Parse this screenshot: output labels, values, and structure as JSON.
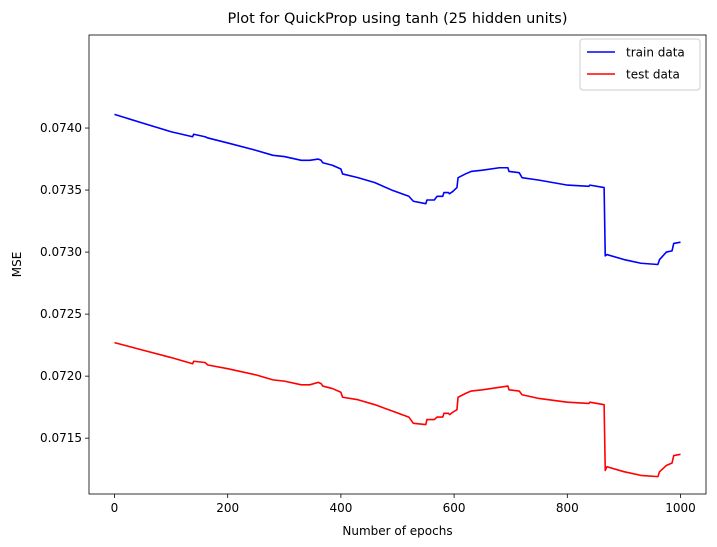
{
  "chart_data": {
    "type": "line",
    "title": "Plot for QuickProp using tanh (25 hidden units)",
    "xlabel": "Number of epochs",
    "ylabel": "MSE",
    "xlim": [
      -45,
      1045
    ],
    "ylim": [
      0.07105,
      0.07475
    ],
    "xticks": [
      0,
      200,
      400,
      600,
      800,
      1000
    ],
    "yticks": [
      0.0715,
      0.072,
      0.0725,
      0.073,
      0.0735,
      0.074
    ],
    "ytick_labels": [
      "0.0715",
      "0.0720",
      "0.0725",
      "0.0730",
      "0.0735",
      "0.0740"
    ],
    "grid": false,
    "legend_position": "top-right",
    "series": [
      {
        "name": "train data",
        "color": "#0000ff",
        "points": [
          [
            0,
            0.07411
          ],
          [
            50,
            0.07404
          ],
          [
            100,
            0.07397
          ],
          [
            138,
            0.07393
          ],
          [
            140,
            0.07395
          ],
          [
            160,
            0.07393
          ],
          [
            165,
            0.07392
          ],
          [
            200,
            0.07388
          ],
          [
            250,
            0.07382
          ],
          [
            280,
            0.07378
          ],
          [
            300,
            0.07377
          ],
          [
            330,
            0.07374
          ],
          [
            345,
            0.07374
          ],
          [
            360,
            0.07375
          ],
          [
            365,
            0.07374
          ],
          [
            368,
            0.07372
          ],
          [
            385,
            0.0737
          ],
          [
            400,
            0.07367
          ],
          [
            403,
            0.07363
          ],
          [
            430,
            0.0736
          ],
          [
            460,
            0.07356
          ],
          [
            490,
            0.0735
          ],
          [
            520,
            0.07345
          ],
          [
            528,
            0.07341
          ],
          [
            550,
            0.07339
          ],
          [
            552,
            0.07342
          ],
          [
            565,
            0.07342
          ],
          [
            570,
            0.07345
          ],
          [
            580,
            0.07345
          ],
          [
            582,
            0.07348
          ],
          [
            590,
            0.07348
          ],
          [
            592,
            0.07347
          ],
          [
            598,
            0.07349
          ],
          [
            605,
            0.07352
          ],
          [
            607,
            0.0736
          ],
          [
            620,
            0.07363
          ],
          [
            630,
            0.07365
          ],
          [
            650,
            0.07366
          ],
          [
            680,
            0.07368
          ],
          [
            695,
            0.07368
          ],
          [
            697,
            0.07365
          ],
          [
            715,
            0.07364
          ],
          [
            720,
            0.0736
          ],
          [
            750,
            0.07358
          ],
          [
            800,
            0.07354
          ],
          [
            838,
            0.07353
          ],
          [
            840,
            0.07354
          ],
          [
            865,
            0.07352
          ],
          [
            867,
            0.07297
          ],
          [
            870,
            0.07298
          ],
          [
            900,
            0.07294
          ],
          [
            930,
            0.07291
          ],
          [
            960,
            0.0729
          ],
          [
            963,
            0.07294
          ],
          [
            975,
            0.073
          ],
          [
            985,
            0.07301
          ],
          [
            988,
            0.07307
          ],
          [
            1000,
            0.07308
          ]
        ]
      },
      {
        "name": "test data",
        "color": "#ff0000",
        "points": [
          [
            0,
            0.07227
          ],
          [
            50,
            0.07221
          ],
          [
            100,
            0.07215
          ],
          [
            138,
            0.0721
          ],
          [
            140,
            0.07212
          ],
          [
            160,
            0.07211
          ],
          [
            165,
            0.07209
          ],
          [
            200,
            0.07206
          ],
          [
            250,
            0.07201
          ],
          [
            280,
            0.07197
          ],
          [
            300,
            0.07196
          ],
          [
            330,
            0.07193
          ],
          [
            345,
            0.07193
          ],
          [
            360,
            0.07195
          ],
          [
            365,
            0.07194
          ],
          [
            368,
            0.07192
          ],
          [
            385,
            0.0719
          ],
          [
            400,
            0.07187
          ],
          [
            403,
            0.07183
          ],
          [
            430,
            0.07181
          ],
          [
            460,
            0.07177
          ],
          [
            490,
            0.07172
          ],
          [
            520,
            0.07167
          ],
          [
            528,
            0.07162
          ],
          [
            550,
            0.07161
          ],
          [
            552,
            0.07165
          ],
          [
            565,
            0.07165
          ],
          [
            570,
            0.07167
          ],
          [
            580,
            0.07167
          ],
          [
            582,
            0.0717
          ],
          [
            590,
            0.0717
          ],
          [
            592,
            0.07169
          ],
          [
            598,
            0.07171
          ],
          [
            605,
            0.07173
          ],
          [
            607,
            0.07183
          ],
          [
            620,
            0.07186
          ],
          [
            630,
            0.07188
          ],
          [
            650,
            0.07189
          ],
          [
            680,
            0.07191
          ],
          [
            695,
            0.07192
          ],
          [
            697,
            0.07189
          ],
          [
            715,
            0.07188
          ],
          [
            720,
            0.07185
          ],
          [
            750,
            0.07182
          ],
          [
            800,
            0.07179
          ],
          [
            838,
            0.07178
          ],
          [
            840,
            0.07179
          ],
          [
            865,
            0.07177
          ],
          [
            867,
            0.07124
          ],
          [
            870,
            0.07127
          ],
          [
            900,
            0.07123
          ],
          [
            930,
            0.0712
          ],
          [
            960,
            0.07119
          ],
          [
            963,
            0.07123
          ],
          [
            975,
            0.07128
          ],
          [
            985,
            0.0713
          ],
          [
            988,
            0.07136
          ],
          [
            1000,
            0.07137
          ]
        ]
      }
    ]
  }
}
